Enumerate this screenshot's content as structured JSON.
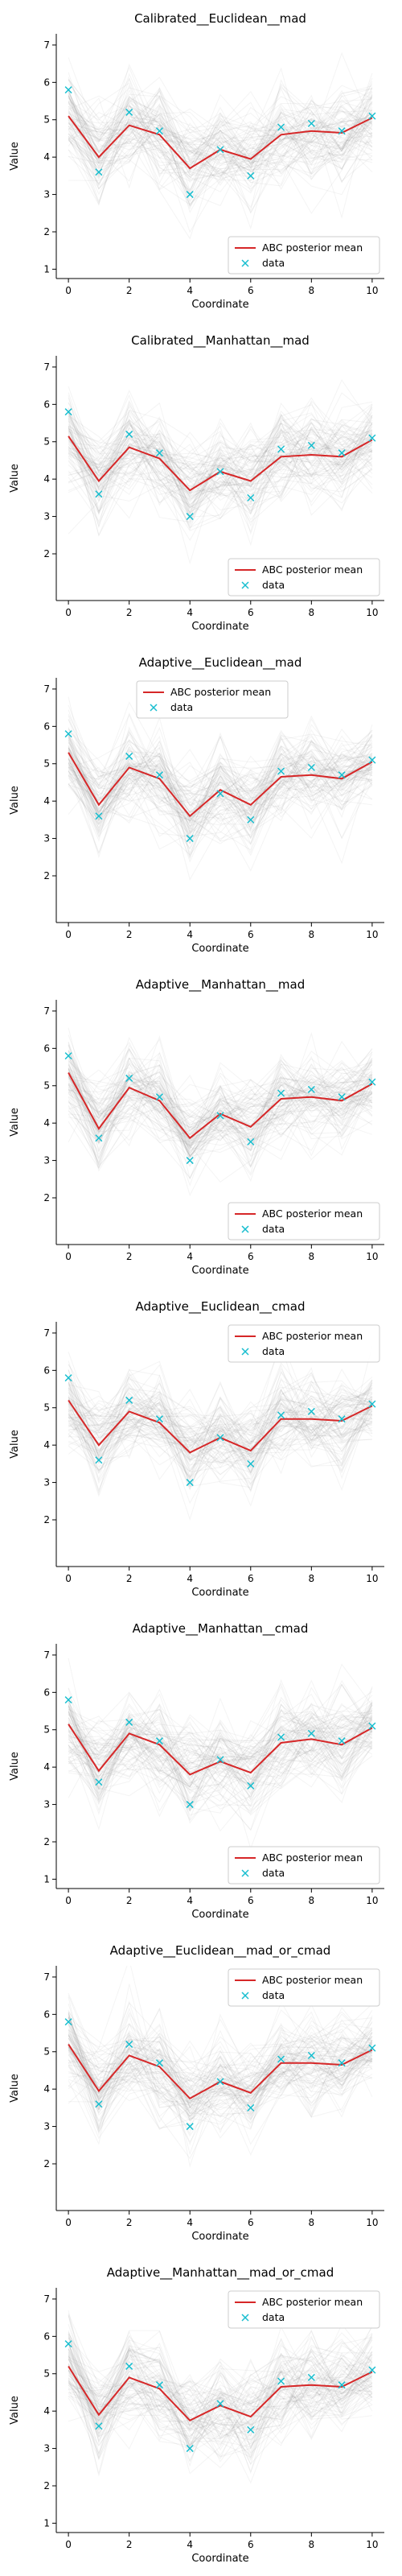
{
  "chart_data": [
    {
      "type": "line",
      "title": "Calibrated__Euclidean__mad",
      "xlabel": "Coordinate",
      "ylabel": "Value",
      "xlim": [
        0,
        10
      ],
      "ylim": [
        1,
        7
      ],
      "xticks": [
        0,
        2,
        4,
        6,
        8,
        10
      ],
      "yticks": [
        1,
        2,
        3,
        4,
        5,
        6,
        7
      ],
      "legend_position": "lower-right",
      "series": [
        {
          "name": "ABC posterior mean",
          "color": "#d62728",
          "x": [
            0,
            1,
            2,
            3,
            4,
            5,
            6,
            7,
            8,
            9,
            10
          ],
          "y": [
            5.1,
            4.0,
            4.85,
            4.6,
            3.7,
            4.2,
            3.95,
            4.6,
            4.7,
            4.65,
            5.05
          ]
        },
        {
          "name": "data",
          "color": "#17becf",
          "marker": "x",
          "x": [
            0,
            1,
            2,
            3,
            4,
            5,
            6,
            7,
            8,
            9,
            10
          ],
          "y": [
            5.8,
            3.6,
            5.2,
            4.7,
            3.0,
            4.2,
            3.5,
            4.8,
            4.9,
            4.7,
            5.1
          ]
        }
      ],
      "spread": [
        1.3,
        1.4,
        1.3,
        1.4,
        1.3,
        1.3,
        1.3,
        1.3,
        1.3,
        1.3,
        1.1
      ]
    },
    {
      "type": "line",
      "title": "Calibrated__Manhattan__mad",
      "xlabel": "Coordinate",
      "ylabel": "Value",
      "xlim": [
        0,
        10
      ],
      "ylim": [
        1,
        7
      ],
      "xticks": [
        0,
        2,
        4,
        6,
        8,
        10
      ],
      "yticks": [
        2,
        3,
        4,
        5,
        6,
        7
      ],
      "legend_position": "lower-right",
      "series": [
        {
          "name": "ABC posterior mean",
          "color": "#d62728",
          "x": [
            0,
            1,
            2,
            3,
            4,
            5,
            6,
            7,
            8,
            9,
            10
          ],
          "y": [
            5.15,
            3.95,
            4.85,
            4.55,
            3.7,
            4.2,
            3.95,
            4.6,
            4.65,
            4.6,
            5.05
          ]
        },
        {
          "name": "data",
          "color": "#17becf",
          "marker": "x",
          "x": [
            0,
            1,
            2,
            3,
            4,
            5,
            6,
            7,
            8,
            9,
            10
          ],
          "y": [
            5.8,
            3.6,
            5.2,
            4.7,
            3.0,
            4.2,
            3.5,
            4.8,
            4.9,
            4.7,
            5.1
          ]
        }
      ],
      "spread": [
        1.3,
        1.3,
        1.3,
        1.3,
        1.3,
        1.2,
        1.3,
        1.3,
        1.3,
        1.3,
        1.0
      ]
    },
    {
      "type": "line",
      "title": "Adaptive__Euclidean__mad",
      "xlabel": "Coordinate",
      "ylabel": "Value",
      "xlim": [
        0,
        10
      ],
      "ylim": [
        1,
        7
      ],
      "xticks": [
        0,
        2,
        4,
        6,
        8,
        10
      ],
      "yticks": [
        2,
        3,
        4,
        5,
        6,
        7
      ],
      "legend_position": "top-center",
      "series": [
        {
          "name": "ABC posterior mean",
          "color": "#d62728",
          "x": [
            0,
            1,
            2,
            3,
            4,
            5,
            6,
            7,
            8,
            9,
            10
          ],
          "y": [
            5.3,
            3.9,
            4.9,
            4.6,
            3.6,
            4.3,
            3.9,
            4.65,
            4.7,
            4.6,
            5.05
          ]
        },
        {
          "name": "data",
          "color": "#17becf",
          "marker": "x",
          "x": [
            0,
            1,
            2,
            3,
            4,
            5,
            6,
            7,
            8,
            9,
            10
          ],
          "y": [
            5.8,
            3.6,
            5.2,
            4.7,
            3.0,
            4.2,
            3.5,
            4.8,
            4.9,
            4.7,
            5.1
          ]
        }
      ],
      "spread": [
        1.1,
        1.2,
        1.2,
        1.2,
        1.2,
        1.1,
        1.2,
        1.2,
        1.2,
        1.2,
        0.9
      ]
    },
    {
      "type": "line",
      "title": "Adaptive__Manhattan__mad",
      "xlabel": "Coordinate",
      "ylabel": "Value",
      "xlim": [
        0,
        10
      ],
      "ylim": [
        1,
        7
      ],
      "xticks": [
        0,
        2,
        4,
        6,
        8,
        10
      ],
      "yticks": [
        2,
        3,
        4,
        5,
        6,
        7
      ],
      "legend_position": "lower-right",
      "series": [
        {
          "name": "ABC posterior mean",
          "color": "#d62728",
          "x": [
            0,
            1,
            2,
            3,
            4,
            5,
            6,
            7,
            8,
            9,
            10
          ],
          "y": [
            5.35,
            3.85,
            4.95,
            4.6,
            3.6,
            4.25,
            3.9,
            4.65,
            4.7,
            4.6,
            5.05
          ]
        },
        {
          "name": "data",
          "color": "#17becf",
          "marker": "x",
          "x": [
            0,
            1,
            2,
            3,
            4,
            5,
            6,
            7,
            8,
            9,
            10
          ],
          "y": [
            5.8,
            3.6,
            5.2,
            4.7,
            3.0,
            4.2,
            3.5,
            4.8,
            4.9,
            4.7,
            5.1
          ]
        }
      ],
      "spread": [
        1.1,
        1.2,
        1.2,
        1.2,
        1.2,
        1.1,
        1.2,
        1.2,
        1.2,
        1.2,
        0.9
      ]
    },
    {
      "type": "line",
      "title": "Adaptive__Euclidean__cmad",
      "xlabel": "Coordinate",
      "ylabel": "Value",
      "xlim": [
        0,
        10
      ],
      "ylim": [
        1,
        7
      ],
      "xticks": [
        0,
        2,
        4,
        6,
        8,
        10
      ],
      "yticks": [
        2,
        3,
        4,
        5,
        6,
        7
      ],
      "legend_position": "top-right",
      "series": [
        {
          "name": "ABC posterior mean",
          "color": "#d62728",
          "x": [
            0,
            1,
            2,
            3,
            4,
            5,
            6,
            7,
            8,
            9,
            10
          ],
          "y": [
            5.2,
            4.0,
            4.9,
            4.6,
            3.8,
            4.2,
            3.85,
            4.7,
            4.7,
            4.65,
            5.05
          ]
        },
        {
          "name": "data",
          "color": "#17becf",
          "marker": "x",
          "x": [
            0,
            1,
            2,
            3,
            4,
            5,
            6,
            7,
            8,
            9,
            10
          ],
          "y": [
            5.8,
            3.6,
            5.2,
            4.7,
            3.0,
            4.2,
            3.5,
            4.8,
            4.9,
            4.7,
            5.1
          ]
        }
      ],
      "spread": [
        1.3,
        1.2,
        1.2,
        1.2,
        1.2,
        1.2,
        1.2,
        1.2,
        1.2,
        1.2,
        0.9
      ]
    },
    {
      "type": "line",
      "title": "Adaptive__Manhattan__cmad",
      "xlabel": "Coordinate",
      "ylabel": "Value",
      "xlim": [
        0,
        10
      ],
      "ylim": [
        1,
        7
      ],
      "xticks": [
        0,
        2,
        4,
        6,
        8,
        10
      ],
      "yticks": [
        1,
        2,
        3,
        4,
        5,
        6,
        7
      ],
      "legend_position": "lower-right",
      "series": [
        {
          "name": "ABC posterior mean",
          "color": "#d62728",
          "x": [
            0,
            1,
            2,
            3,
            4,
            5,
            6,
            7,
            8,
            9,
            10
          ],
          "y": [
            5.15,
            3.9,
            4.9,
            4.6,
            3.8,
            4.15,
            3.85,
            4.65,
            4.75,
            4.6,
            5.05
          ]
        },
        {
          "name": "data",
          "color": "#17becf",
          "marker": "x",
          "x": [
            0,
            1,
            2,
            3,
            4,
            5,
            6,
            7,
            8,
            9,
            10
          ],
          "y": [
            5.8,
            3.6,
            5.2,
            4.7,
            3.0,
            4.2,
            3.5,
            4.8,
            4.9,
            4.7,
            5.1
          ]
        }
      ],
      "spread": [
        1.3,
        1.3,
        1.3,
        1.3,
        1.3,
        1.3,
        1.3,
        1.3,
        1.3,
        1.3,
        1.0
      ]
    },
    {
      "type": "line",
      "title": "Adaptive__Euclidean__mad_or_cmad",
      "xlabel": "Coordinate",
      "ylabel": "Value",
      "xlim": [
        0,
        10
      ],
      "ylim": [
        1,
        7
      ],
      "xticks": [
        0,
        2,
        4,
        6,
        8,
        10
      ],
      "yticks": [
        2,
        3,
        4,
        5,
        6,
        7
      ],
      "legend_position": "top-right",
      "series": [
        {
          "name": "ABC posterior mean",
          "color": "#d62728",
          "x": [
            0,
            1,
            2,
            3,
            4,
            5,
            6,
            7,
            8,
            9,
            10
          ],
          "y": [
            5.2,
            3.95,
            4.9,
            4.6,
            3.75,
            4.2,
            3.9,
            4.7,
            4.7,
            4.65,
            5.05
          ]
        },
        {
          "name": "data",
          "color": "#17becf",
          "marker": "x",
          "x": [
            0,
            1,
            2,
            3,
            4,
            5,
            6,
            7,
            8,
            9,
            10
          ],
          "y": [
            5.8,
            3.6,
            5.2,
            4.7,
            3.0,
            4.2,
            3.5,
            4.8,
            4.9,
            4.7,
            5.1
          ]
        }
      ],
      "spread": [
        1.3,
        1.2,
        1.2,
        1.2,
        1.2,
        1.2,
        1.2,
        1.2,
        1.2,
        1.2,
        0.9
      ]
    },
    {
      "type": "line",
      "title": "Adaptive__Manhattan__mad_or_cmad",
      "xlabel": "Coordinate",
      "ylabel": "Value",
      "xlim": [
        0,
        10
      ],
      "ylim": [
        1,
        7
      ],
      "xticks": [
        0,
        2,
        4,
        6,
        8,
        10
      ],
      "yticks": [
        1,
        2,
        3,
        4,
        5,
        6,
        7
      ],
      "legend_position": "top-right",
      "series": [
        {
          "name": "ABC posterior mean",
          "color": "#d62728",
          "x": [
            0,
            1,
            2,
            3,
            4,
            5,
            6,
            7,
            8,
            9,
            10
          ],
          "y": [
            5.2,
            3.9,
            4.9,
            4.6,
            3.75,
            4.15,
            3.85,
            4.65,
            4.7,
            4.65,
            5.05
          ]
        },
        {
          "name": "data",
          "color": "#17becf",
          "marker": "x",
          "x": [
            0,
            1,
            2,
            3,
            4,
            5,
            6,
            7,
            8,
            9,
            10
          ],
          "y": [
            5.8,
            3.6,
            5.2,
            4.7,
            3.0,
            4.2,
            3.5,
            4.8,
            4.9,
            4.7,
            5.1
          ]
        }
      ],
      "spread": [
        1.3,
        1.3,
        1.3,
        1.3,
        1.3,
        1.3,
        1.3,
        1.3,
        1.3,
        1.3,
        1.0
      ]
    }
  ],
  "colors": {
    "posterior_mean": "#d62728",
    "data_marker": "#17becf",
    "sample_lines": "#808080",
    "axis": "#000000"
  }
}
